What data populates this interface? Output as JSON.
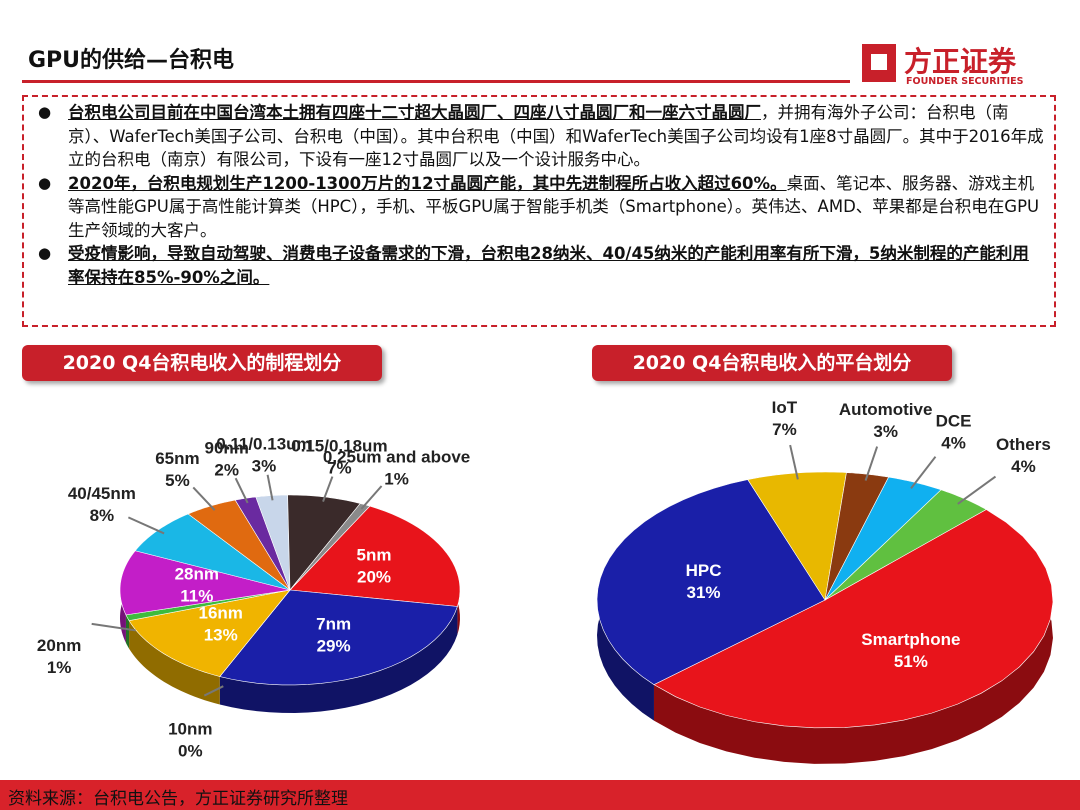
{
  "header": {
    "title": "GPU的供给—台积电",
    "logo": "方正证券",
    "logo_en": "FOUNDER SECURITIES"
  },
  "bullets": [
    {
      "bold": "台积电公司目前在中国台湾本土拥有四座十二寸超大晶圆厂、四座八寸晶圆厂和一座六寸晶圆厂",
      "text": "，并拥有海外子公司：台积电（南京）、WaferTech美国子公司、台积电（中国）。其中台积电（中国）和WaferTech美国子公司均设有1座8寸晶圆厂。其中于2016年成立的台积电（南京）有限公司，下设有一座12寸晶圆厂以及一个设计服务中心。"
    },
    {
      "bold": "2020年，台积电规划生产1200-1300万片的12寸晶圆产能，其中先进制程所占收入超过60%。",
      "text": "桌面、笔记本、服务器、游戏主机等高性能GPU属于高性能计算类（HPC），手机、平板GPU属于智能手机类（Smartphone）。英伟达、AMD、苹果都是台积电在GPU生产领域的大客户。"
    },
    {
      "bold": "受疫情影响，导致自动驾驶、消费电子设备需求的下滑，台积电28纳米、40/45纳米的产能利用率有所下滑，5纳米制程的产能利用率保持在85%-90%之间。"
    }
  ],
  "source": "资料来源：台积电公告，方正证券研究所整理",
  "chart_data": [
    {
      "type": "pie",
      "title": "2020 Q4台积电收入的制程划分",
      "categories": [
        "5nm",
        "7nm",
        "10nm",
        "16nm",
        "20nm",
        "28nm",
        "40/45nm",
        "65nm",
        "90nm",
        "0.11/0.13um",
        "0.15/0.18um",
        "0.25um and above"
      ],
      "values": [
        20,
        29,
        0,
        13,
        1,
        11,
        8,
        5,
        2,
        3,
        7,
        1
      ],
      "value_labels": [
        "20%",
        "29%",
        "0%",
        "13%",
        "1%",
        "11%",
        "8%",
        "5%",
        "2%",
        "3%",
        "7%",
        "1%"
      ],
      "colors": [
        "#e8141b",
        "#1a1fa8",
        "#1a8a2a",
        "#f0b400",
        "#3dbb3d",
        "#c31ec8",
        "#1ab7e6",
        "#e06a10",
        "#6a2aa0",
        "#c8d6ea",
        "#3a2a2a",
        "#8a8a8a"
      ]
    },
    {
      "type": "pie",
      "title": "2020 Q4台积电收入的平台划分",
      "categories": [
        "Smartphone",
        "HPC",
        "IoT",
        "Automotive",
        "DCE",
        "Others"
      ],
      "values": [
        51,
        31,
        7,
        3,
        4,
        4
      ],
      "value_labels": [
        "51%",
        "31%",
        "7%",
        "3%",
        "4%",
        "4%"
      ],
      "colors": [
        "#e8141b",
        "#1a1fa8",
        "#e8b800",
        "#8a3a10",
        "#10b0f0",
        "#60c040"
      ]
    }
  ]
}
